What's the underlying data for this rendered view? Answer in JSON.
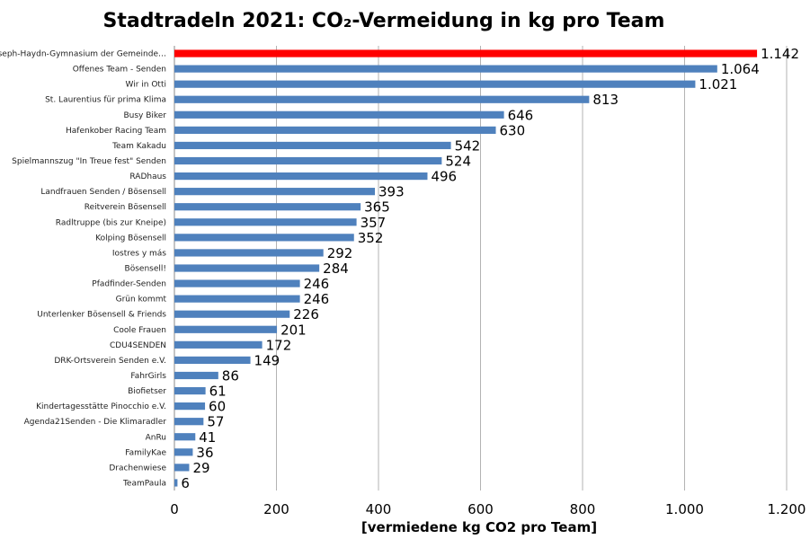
{
  "chart_data": {
    "type": "bar",
    "orientation": "horizontal",
    "title": "Stadtradeln 2021: CO₂-Vermeidung in kg pro Team",
    "xlabel": "[vermiedene kg CO2 pro Team]",
    "ylabel": "",
    "xlim": [
      0,
      1200
    ],
    "ticks": [
      0,
      200,
      400,
      600,
      800,
      1000,
      1200
    ],
    "tick_labels": [
      "0",
      "200",
      "400",
      "600",
      "800",
      "1.000",
      "1.200"
    ],
    "grid": "vertical",
    "legend": "none",
    "colors": {
      "default": "#4f81bd",
      "highlight": "#ff0000"
    },
    "categories": [
      "Joseph-Haydn-Gymnasium der Gemeinde…",
      "Offenes Team - Senden",
      "Wir in Otti",
      "St. Laurentius für prima Klima",
      "Busy Biker",
      "Hafenkober Racing Team",
      "Team Kakadu",
      "Spielmannszug \"In Treue fest\" Senden",
      "RADhaus",
      "Landfrauen Senden / Bösensell",
      "Reitverein Bösensell",
      "Radltruppe (bis zur Kneipe)",
      "Kolping Bösensell",
      "Iostres y más",
      "Bösensell!",
      "Pfadfinder-Senden",
      "Grün kommt",
      "Unterlenker Bösensell & Friends",
      "Coole Frauen",
      "CDU4SENDEN",
      "DRK-Ortsverein Senden e.V.",
      "FahrGirls",
      "Biofietser",
      "Kindertagesstätte Pinocchio e.V.",
      "Agenda21Senden - Die Klimaradler",
      "AnRu",
      "FamilyKae",
      "Drachenwiese",
      "TeamPaula"
    ],
    "values": [
      1142,
      1064,
      1021,
      813,
      646,
      630,
      542,
      524,
      496,
      393,
      365,
      357,
      352,
      292,
      284,
      246,
      246,
      226,
      201,
      172,
      149,
      86,
      61,
      60,
      57,
      41,
      36,
      29,
      6
    ],
    "value_labels": [
      "1.142",
      "1.064",
      "1.021",
      "813",
      "646",
      "630",
      "542",
      "524",
      "496",
      "393",
      "365",
      "357",
      "352",
      "292",
      "284",
      "246",
      "246",
      "226",
      "201",
      "172",
      "149",
      "86",
      "61",
      "60",
      "57",
      "41",
      "36",
      "29",
      "6"
    ],
    "highlight_index": 0
  }
}
